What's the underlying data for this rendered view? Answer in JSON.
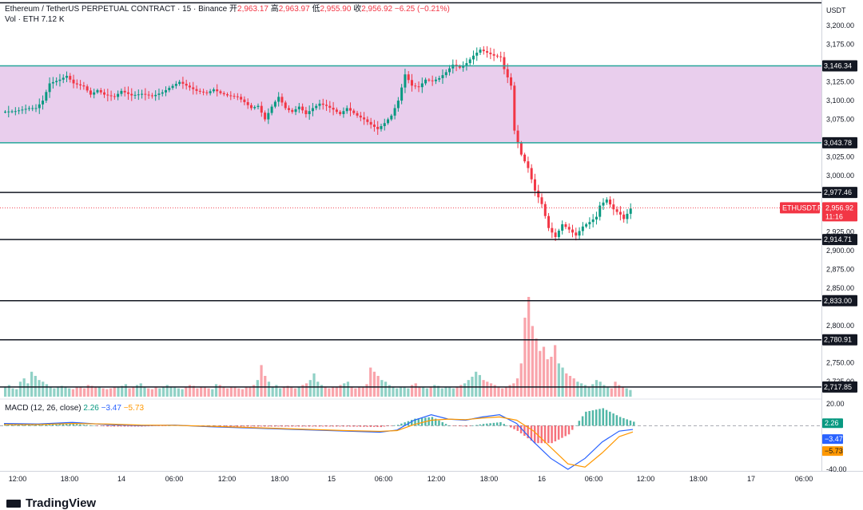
{
  "header": {
    "symbol": "Ethereum / TetherUS PERPETUAL CONTRACT · 15 · Binance",
    "open_label": "开",
    "open": "2,963.17",
    "high_label": "高",
    "high": "2,963.97",
    "low_label": "低",
    "low": "2,955.90",
    "close_label": "收",
    "close": "2,956.92",
    "change": "−6.25 (−0.21%)",
    "vol_label": "Vol · ETH",
    "vol_value": "7.12 K",
    "currency": "USDT"
  },
  "macd_header": {
    "label": "MACD (12, 26, close)",
    "hist": "2.26",
    "macd": "−3.47",
    "signal": "−5.73"
  },
  "brand": "TradingView",
  "price_tag": {
    "symbol": "ETHUSDT.P",
    "price": "2,956.92",
    "countdown": "11:16"
  },
  "colors": {
    "up": "#089981",
    "down": "#f23645",
    "zone": "#e1bee7",
    "zone_line": "#26a69a",
    "macd": "#2962ff",
    "signal": "#ff9800"
  },
  "chart_data": {
    "type": "candlestick",
    "y_ticks": [
      "3,200.00",
      "3,175.00",
      "3,125.00",
      "3,100.00",
      "3,075.00",
      "3,025.00",
      "3,000.00",
      "2,925.00",
      "2,900.00",
      "2,875.00",
      "2,850.00",
      "2,800.00",
      "2,750.00",
      "2,725.00"
    ],
    "x_ticks": [
      "12:00",
      "18:00",
      "14",
      "06:00",
      "12:00",
      "18:00",
      "15",
      "06:00",
      "12:00",
      "18:00",
      "16",
      "06:00",
      "12:00",
      "18:00",
      "17",
      "06:00"
    ],
    "zone": {
      "top": 3146.34,
      "bottom": 3043.78
    },
    "levels": [
      {
        "value": 3146.34,
        "label": "3,146.34"
      },
      {
        "value": 3043.78,
        "label": "3,043.78"
      },
      {
        "value": 2977.46,
        "label": "2,977.46"
      },
      {
        "value": 2914.71,
        "label": "2,914.71"
      },
      {
        "value": 2833.0,
        "label": "2,833.00"
      },
      {
        "value": 2780.91,
        "label": "2,780.91"
      },
      {
        "value": 2717.85,
        "label": "2,717.85"
      }
    ],
    "last_price": 2956.92,
    "price_path": [
      [
        0,
        3085
      ],
      [
        4,
        3086
      ],
      [
        8,
        3090
      ],
      [
        10,
        3090
      ],
      [
        12,
        3100
      ],
      [
        14,
        3123
      ],
      [
        17,
        3128
      ],
      [
        19,
        3133
      ],
      [
        21,
        3123
      ],
      [
        24,
        3119
      ],
      [
        26,
        3108
      ],
      [
        28,
        3114
      ],
      [
        30,
        3108
      ],
      [
        33,
        3105
      ],
      [
        35,
        3113
      ],
      [
        38,
        3107
      ],
      [
        41,
        3109
      ],
      [
        44,
        3106
      ],
      [
        47,
        3111
      ],
      [
        49,
        3117
      ],
      [
        52,
        3125
      ],
      [
        54,
        3120
      ],
      [
        57,
        3113
      ],
      [
        60,
        3110
      ],
      [
        62,
        3115
      ],
      [
        64,
        3110
      ],
      [
        66,
        3107
      ],
      [
        69,
        3105
      ],
      [
        71,
        3098
      ],
      [
        73,
        3090
      ],
      [
        75,
        3093
      ],
      [
        77,
        3075
      ],
      [
        79,
        3092
      ],
      [
        81,
        3105
      ],
      [
        83,
        3090
      ],
      [
        85,
        3085
      ],
      [
        87,
        3092
      ],
      [
        89,
        3082
      ],
      [
        91,
        3090
      ],
      [
        93,
        3096
      ],
      [
        95,
        3093
      ],
      [
        97,
        3088
      ],
      [
        99,
        3082
      ],
      [
        101,
        3090
      ],
      [
        104,
        3080
      ],
      [
        106,
        3075
      ],
      [
        108,
        3068
      ],
      [
        110,
        3062
      ],
      [
        112,
        3070
      ],
      [
        114,
        3080
      ],
      [
        116,
        3100
      ],
      [
        118,
        3135
      ],
      [
        120,
        3120
      ],
      [
        122,
        3118
      ],
      [
        124,
        3128
      ],
      [
        126,
        3126
      ],
      [
        128,
        3130
      ],
      [
        130,
        3138
      ],
      [
        132,
        3148
      ],
      [
        134,
        3144
      ],
      [
        136,
        3150
      ],
      [
        138,
        3160
      ],
      [
        140,
        3168
      ],
      [
        142,
        3164
      ],
      [
        144,
        3160
      ],
      [
        146,
        3158
      ],
      [
        147,
        3142
      ],
      [
        149,
        3120
      ],
      [
        150,
        3060
      ],
      [
        152,
        3028
      ],
      [
        154,
        3010
      ],
      [
        156,
        2980
      ],
      [
        158,
        2962
      ],
      [
        160,
        2930
      ],
      [
        162,
        2918
      ],
      [
        164,
        2935
      ],
      [
        166,
        2928
      ],
      [
        168,
        2920
      ],
      [
        170,
        2932
      ],
      [
        172,
        2938
      ],
      [
        174,
        2945
      ],
      [
        175,
        2960
      ],
      [
        177,
        2968
      ],
      [
        179,
        2955
      ],
      [
        181,
        2948
      ],
      [
        182,
        2942
      ],
      [
        184,
        2956
      ]
    ],
    "volume": [
      12,
      14,
      10,
      9,
      18,
      22,
      16,
      30,
      25,
      20,
      18,
      15,
      12,
      10,
      11,
      13,
      12,
      10,
      9,
      11,
      12,
      10,
      14,
      13,
      11,
      12,
      10,
      9,
      10,
      12,
      11,
      13,
      15,
      10,
      12,
      14,
      16,
      12,
      10,
      9,
      11,
      10,
      12,
      14,
      12,
      11,
      10,
      9,
      12,
      14,
      13,
      10,
      12,
      11,
      10,
      9,
      15,
      14,
      12,
      10,
      11,
      12,
      10,
      9,
      12,
      11,
      14,
      20,
      38,
      25,
      18,
      12,
      14,
      10,
      11,
      13,
      12,
      10,
      12,
      14,
      16,
      20,
      28,
      18,
      14,
      12,
      10,
      11,
      12,
      14,
      16,
      18,
      12,
      10,
      11,
      12,
      15,
      35,
      30,
      25,
      20,
      18,
      14,
      12,
      10,
      11,
      12,
      10,
      14,
      16,
      12,
      11,
      10,
      12,
      14,
      13,
      10,
      12,
      11,
      10,
      12,
      14,
      16,
      20,
      24,
      30,
      26,
      20,
      18,
      16,
      14,
      12,
      10,
      12,
      14,
      16,
      22,
      40,
      95,
      120,
      85,
      70,
      55,
      60,
      45,
      48,
      62,
      40,
      35,
      28,
      25,
      22,
      18,
      16,
      14,
      12,
      15,
      20,
      18,
      14,
      12,
      10,
      18,
      14,
      12,
      10,
      8
    ],
    "macd_range": [
      -40,
      20
    ],
    "macd_line": [
      [
        0,
        2
      ],
      [
        10,
        1.5
      ],
      [
        20,
        3
      ],
      [
        30,
        1
      ],
      [
        40,
        0
      ],
      [
        50,
        0.5
      ],
      [
        60,
        -1
      ],
      [
        70,
        -2
      ],
      [
        80,
        -3
      ],
      [
        90,
        -4
      ],
      [
        100,
        -5
      ],
      [
        110,
        -6
      ],
      [
        115,
        -4
      ],
      [
        120,
        5
      ],
      [
        125,
        10
      ],
      [
        130,
        6
      ],
      [
        135,
        5
      ],
      [
        140,
        8
      ],
      [
        145,
        10
      ],
      [
        150,
        2
      ],
      [
        155,
        -15
      ],
      [
        160,
        -30
      ],
      [
        165,
        -40
      ],
      [
        170,
        -30
      ],
      [
        175,
        -15
      ],
      [
        180,
        -5
      ],
      [
        184,
        -3.47
      ]
    ],
    "signal_line": [
      [
        0,
        1
      ],
      [
        10,
        1
      ],
      [
        20,
        2
      ],
      [
        30,
        1.5
      ],
      [
        40,
        0.5
      ],
      [
        50,
        0.3
      ],
      [
        60,
        -0.5
      ],
      [
        70,
        -1.5
      ],
      [
        80,
        -2.5
      ],
      [
        90,
        -3.5
      ],
      [
        100,
        -4.5
      ],
      [
        110,
        -5.2
      ],
      [
        115,
        -4.5
      ],
      [
        120,
        1
      ],
      [
        125,
        5
      ],
      [
        130,
        6
      ],
      [
        135,
        5.5
      ],
      [
        140,
        7
      ],
      [
        145,
        8
      ],
      [
        150,
        5
      ],
      [
        155,
        -5
      ],
      [
        160,
        -20
      ],
      [
        165,
        -35
      ],
      [
        170,
        -38
      ],
      [
        175,
        -25
      ],
      [
        180,
        -10
      ],
      [
        184,
        -5.73
      ]
    ]
  }
}
